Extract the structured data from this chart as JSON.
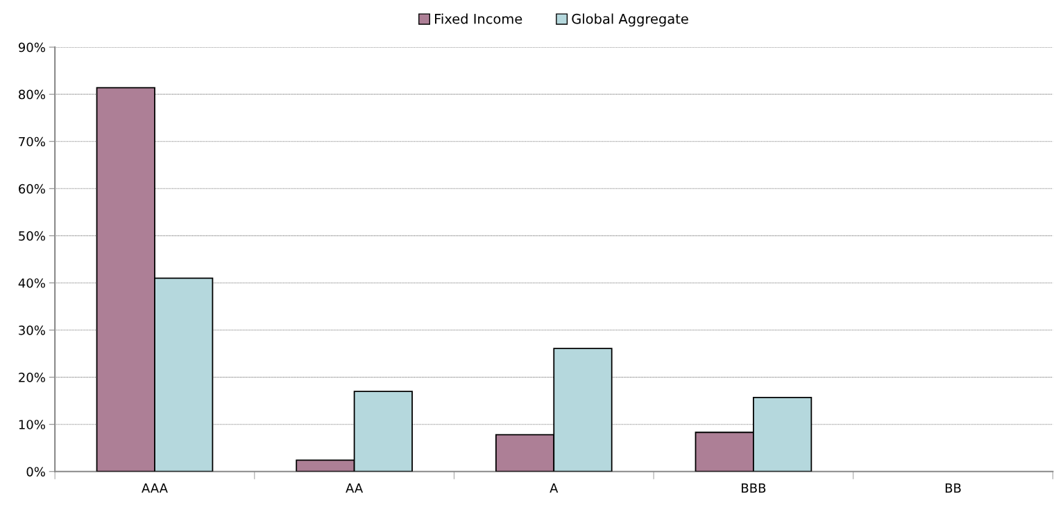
{
  "chart_data": {
    "type": "bar",
    "categories": [
      "AAA",
      "AA",
      "A",
      "BBB",
      "BB"
    ],
    "series": [
      {
        "name": "Fixed Income",
        "color": "#ad7f96",
        "values": [
          81.4,
          2.4,
          7.8,
          8.3,
          null
        ]
      },
      {
        "name": "Global Aggregate",
        "color": "#b5d8dd",
        "values": [
          41.0,
          17.0,
          26.1,
          15.7,
          null
        ]
      }
    ],
    "ylim": [
      0,
      90
    ],
    "yticks": [
      {
        "value": 0,
        "label": "0%"
      },
      {
        "value": 10,
        "label": "10%"
      },
      {
        "value": 20,
        "label": "20%"
      },
      {
        "value": 30,
        "label": "30%"
      },
      {
        "value": 40,
        "label": "40%"
      },
      {
        "value": 50,
        "label": "50%"
      },
      {
        "value": 60,
        "label": "60%"
      },
      {
        "value": 70,
        "label": "70%"
      },
      {
        "value": 80,
        "label": "80%"
      },
      {
        "value": 90,
        "label": "90%"
      }
    ],
    "grid": "y",
    "legend": "top"
  }
}
